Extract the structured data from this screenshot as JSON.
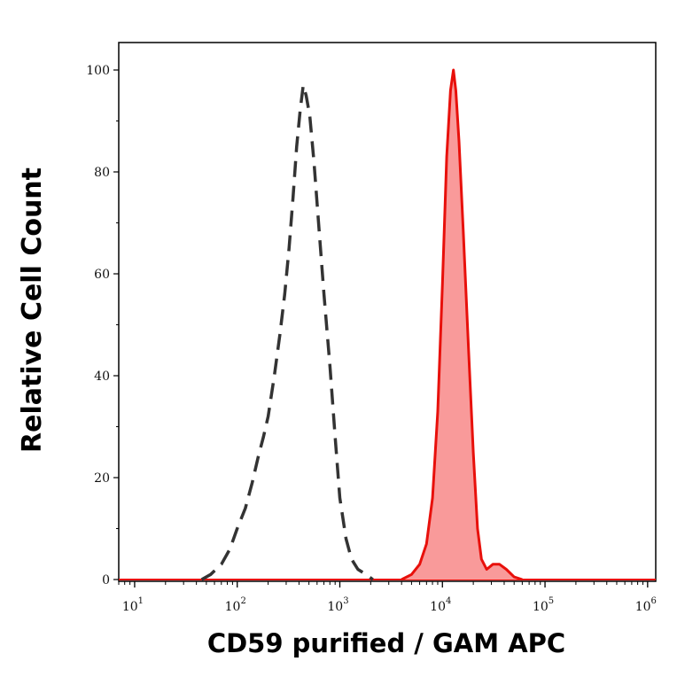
{
  "chart_data": {
    "type": "area",
    "x_scale": "log",
    "xlim": [
      7,
      1200000
    ],
    "ylim": [
      0,
      104
    ],
    "xlabel": "CD59 purified / GAM APC",
    "ylabel": "Relative Cell Count",
    "x_ticks": [
      {
        "value": 10,
        "base": "10",
        "exp": "1"
      },
      {
        "value": 100,
        "base": "10",
        "exp": "2"
      },
      {
        "value": 1000,
        "base": "10",
        "exp": "3"
      },
      {
        "value": 10000,
        "base": "10",
        "exp": "4"
      },
      {
        "value": 100000,
        "base": "10",
        "exp": "5"
      },
      {
        "value": 1000000,
        "base": "10",
        "exp": "6"
      }
    ],
    "y_ticks": [
      0,
      20,
      40,
      60,
      80,
      100
    ],
    "series": [
      {
        "style": "dashed",
        "color": "#333333",
        "filled": false,
        "points": [
          [
            45,
            0
          ],
          [
            55,
            1
          ],
          [
            70,
            3
          ],
          [
            85,
            6
          ],
          [
            100,
            10
          ],
          [
            120,
            14
          ],
          [
            140,
            19
          ],
          [
            160,
            24
          ],
          [
            180,
            28
          ],
          [
            200,
            32
          ],
          [
            230,
            40
          ],
          [
            260,
            48
          ],
          [
            290,
            56
          ],
          [
            320,
            65
          ],
          [
            350,
            75
          ],
          [
            380,
            85
          ],
          [
            410,
            92
          ],
          [
            440,
            97
          ],
          [
            470,
            95
          ],
          [
            510,
            91
          ],
          [
            560,
            82
          ],
          [
            620,
            70
          ],
          [
            700,
            56
          ],
          [
            800,
            42
          ],
          [
            900,
            28
          ],
          [
            1000,
            16
          ],
          [
            1150,
            8
          ],
          [
            1300,
            4
          ],
          [
            1500,
            2
          ],
          [
            1800,
            1
          ],
          [
            2100,
            0
          ]
        ]
      },
      {
        "style": "solid",
        "color": "#e8100b",
        "fill": "#f99a9a",
        "filled": true,
        "points": [
          [
            4000,
            0
          ],
          [
            5000,
            1
          ],
          [
            6000,
            3
          ],
          [
            7000,
            7
          ],
          [
            8000,
            16
          ],
          [
            9000,
            33
          ],
          [
            10000,
            58
          ],
          [
            11000,
            83
          ],
          [
            12000,
            96
          ],
          [
            12800,
            100
          ],
          [
            13500,
            96
          ],
          [
            14500,
            86
          ],
          [
            16000,
            68
          ],
          [
            18000,
            45
          ],
          [
            20000,
            25
          ],
          [
            22000,
            10
          ],
          [
            24000,
            4
          ],
          [
            27000,
            2
          ],
          [
            31000,
            3
          ],
          [
            36000,
            3
          ],
          [
            42000,
            2
          ],
          [
            50000,
            0.5
          ],
          [
            60000,
            0
          ]
        ]
      }
    ]
  }
}
